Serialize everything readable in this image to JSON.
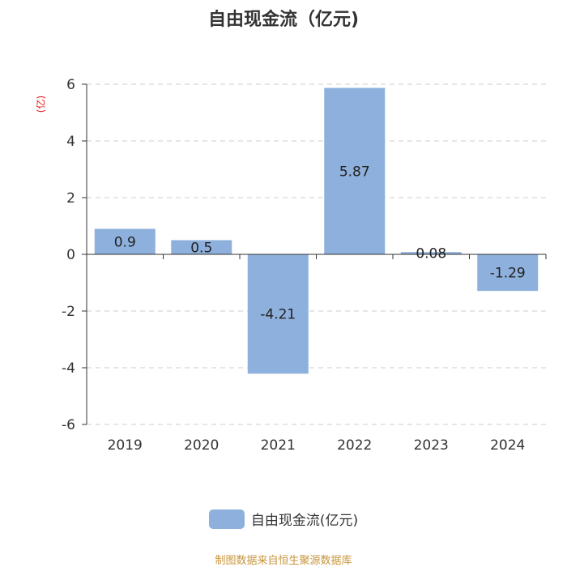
{
  "chart_data": {
    "type": "bar",
    "title": "自由现金流（亿元)",
    "unit_label": "(亿)",
    "categories": [
      "2019",
      "2020",
      "2021",
      "2022",
      "2023",
      "2024"
    ],
    "series": [
      {
        "name": "自由现金流(亿元)",
        "values": [
          0.9,
          0.5,
          -4.21,
          5.87,
          0.08,
          -1.29
        ]
      }
    ],
    "ylim": [
      -6,
      6
    ],
    "yticks": [
      6,
      4,
      2,
      0,
      -2,
      -4,
      -6
    ],
    "grid": true,
    "legend_position": "bottom"
  },
  "colors": {
    "bar": "#8eb0dc",
    "unit": "#e41a1c",
    "source": "#c8943b"
  },
  "source_text": "制图数据来自恒生聚源数据库"
}
